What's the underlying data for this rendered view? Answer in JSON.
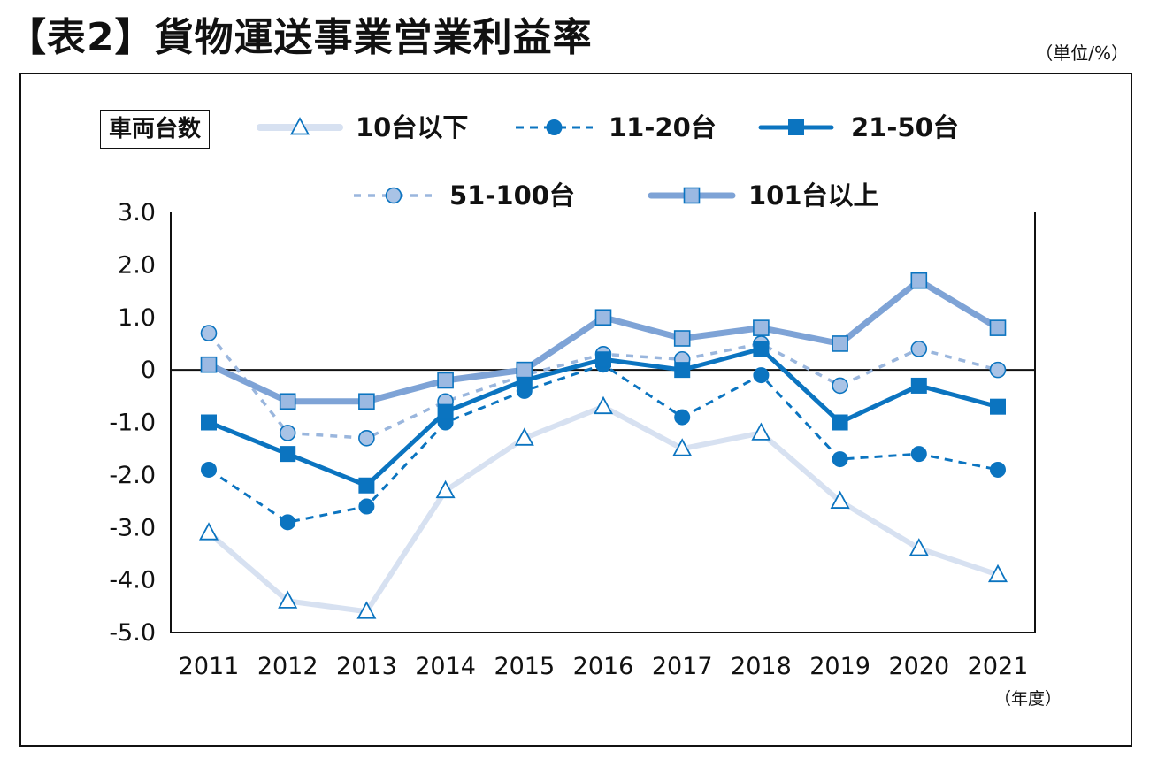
{
  "header": {
    "title": "【表2】貨物運送事業営業利益率",
    "unit": "（単位/%）"
  },
  "chart_data": {
    "type": "line",
    "title": "【表2】貨物運送事業営業利益率",
    "xlabel": "（年度）",
    "ylabel": "（単位/%）",
    "ylim": [
      -5.0,
      3.0
    ],
    "yticks": [
      "3.0",
      "2.0",
      "1.0",
      "0",
      "-1.0",
      "-2.0",
      "-3.0",
      "-4.0",
      "-5.0"
    ],
    "categories": [
      "2011",
      "2012",
      "2013",
      "2014",
      "2015",
      "2016",
      "2017",
      "2018",
      "2019",
      "2020",
      "2021"
    ],
    "legend_title": "車両台数",
    "legend_position": "top",
    "grid": false,
    "series": [
      {
        "name": "10台以下",
        "color": "#d7e1f1",
        "marker": "triangle",
        "line": "solid",
        "values": [
          -3.1,
          -4.4,
          -4.6,
          -2.3,
          -1.3,
          -0.7,
          -1.5,
          -1.2,
          -2.5,
          -3.4,
          -3.9
        ]
      },
      {
        "name": "11-20台",
        "color": "#0b74c0",
        "marker": "circle",
        "line": "dashed",
        "values": [
          -1.9,
          -2.9,
          -2.6,
          -1.0,
          -0.4,
          0.1,
          -0.9,
          -0.1,
          -1.7,
          -1.6,
          -1.9
        ]
      },
      {
        "name": "21-50台",
        "color": "#0b74c0",
        "marker": "square",
        "line": "solid",
        "values": [
          -1.0,
          -1.6,
          -2.2,
          -0.8,
          -0.2,
          0.2,
          0.0,
          0.4,
          -1.0,
          -0.3,
          -0.7
        ]
      },
      {
        "name": "51-100台",
        "color": "#9ab6dd",
        "marker": "circle",
        "line": "dotted",
        "values": [
          0.7,
          -1.2,
          -1.3,
          -0.6,
          -0.1,
          0.3,
          0.2,
          0.5,
          -0.3,
          0.4,
          0.0
        ]
      },
      {
        "name": "101台以上",
        "color": "#7ea3d6",
        "marker": "square",
        "line": "solid",
        "values": [
          0.1,
          -0.6,
          -0.6,
          -0.2,
          0.0,
          1.0,
          0.6,
          0.8,
          0.5,
          1.7,
          0.8
        ]
      }
    ]
  }
}
